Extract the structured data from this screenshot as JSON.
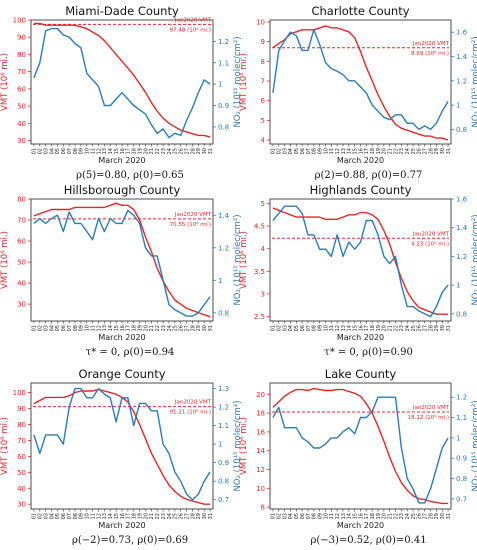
{
  "figure": {
    "x_axis_label": "March 2020",
    "y_left_label": "VMT (10⁶ mi.)",
    "y_right_label": "NO₂ (10¹⁵ molec/cm²)",
    "jan_label": "Jan2020 VMT"
  },
  "colors": {
    "vmt": "#e0282a",
    "no2": "#2c7bb6"
  },
  "chart_data": [
    {
      "type": "line",
      "title": "Miami-Dade County",
      "caption": "ρ(5)=0.80,  ρ(0)=0.65",
      "x": [
        "01",
        "02",
        "03",
        "04",
        "05",
        "06",
        "07",
        "08",
        "09",
        "10",
        "11",
        "12",
        "13",
        "14",
        "15",
        "16",
        "17",
        "18",
        "19",
        "20",
        "21",
        "22",
        "23",
        "24",
        "25",
        "26",
        "27",
        "28",
        "29",
        "30",
        "31"
      ],
      "series": [
        {
          "axis": "left",
          "values": [
            98,
            98,
            97,
            97,
            97,
            97,
            97,
            97,
            96,
            95,
            93,
            91,
            88,
            84,
            80,
            76,
            72,
            68,
            63,
            58,
            52,
            47,
            43,
            40,
            38,
            36,
            35,
            34,
            33,
            33,
            32
          ]
        },
        {
          "axis": "right",
          "values": [
            1.03,
            1.1,
            1.25,
            1.26,
            1.26,
            1.23,
            1.22,
            1.19,
            1.17,
            1.05,
            1.02,
            0.99,
            0.9,
            0.9,
            0.93,
            0.96,
            0.93,
            0.9,
            0.88,
            0.86,
            0.81,
            0.77,
            0.79,
            0.75,
            0.77,
            0.76,
            0.83,
            0.89,
            0.96,
            1.02,
            1.0
          ]
        }
      ],
      "jan_vmt": "97.48",
      "jan_line": 97.48,
      "ylim_left": [
        28,
        100
      ],
      "yticks_left": [
        30,
        40,
        50,
        60,
        70,
        80,
        90,
        100
      ],
      "ylim_right": [
        0.72,
        1.3
      ],
      "yticks_right": [
        0.8,
        0.9,
        1.0,
        1.1,
        1.2
      ]
    },
    {
      "type": "line",
      "title": "Charlotte County",
      "caption": "ρ(2)=0.88,  ρ(0)=0.77",
      "x": [
        "01",
        "02",
        "03",
        "04",
        "05",
        "06",
        "07",
        "08",
        "09",
        "10",
        "11",
        "12",
        "13",
        "14",
        "15",
        "16",
        "17",
        "18",
        "19",
        "20",
        "21",
        "22",
        "23",
        "24",
        "25",
        "26",
        "27",
        "28",
        "29",
        "30",
        "31"
      ],
      "series": [
        {
          "axis": "left",
          "values": [
            8.7,
            8.9,
            9.1,
            9.4,
            9.5,
            9.6,
            9.6,
            9.6,
            9.7,
            9.8,
            9.7,
            9.7,
            9.6,
            9.5,
            9.2,
            8.5,
            7.7,
            7.0,
            6.3,
            5.7,
            5.2,
            4.8,
            4.6,
            4.5,
            4.4,
            4.3,
            4.2,
            4.2,
            4.1,
            4.1,
            4.0
          ]
        },
        {
          "axis": "right",
          "values": [
            1.1,
            1.45,
            1.53,
            1.6,
            1.57,
            1.45,
            1.45,
            1.62,
            1.5,
            1.35,
            1.3,
            1.28,
            1.25,
            1.2,
            1.2,
            1.15,
            1.1,
            1.0,
            0.95,
            0.9,
            0.88,
            0.92,
            0.92,
            0.85,
            0.85,
            0.8,
            0.83,
            0.8,
            0.85,
            0.95,
            1.03
          ]
        }
      ],
      "jan_vmt": "8.69",
      "jan_line": 8.69,
      "ylim_left": [
        3.8,
        10.1
      ],
      "yticks_left": [
        4,
        5,
        6,
        7,
        8,
        9,
        10
      ],
      "ylim_right": [
        0.68,
        1.7
      ],
      "yticks_right": [
        0.8,
        1.0,
        1.2,
        1.4,
        1.6
      ]
    },
    {
      "type": "line",
      "title": "Hillsborough County",
      "caption": "τ* = 0, ρ(0)=0.94",
      "x": [
        "01",
        "02",
        "03",
        "04",
        "05",
        "06",
        "07",
        "08",
        "09",
        "10",
        "11",
        "12",
        "13",
        "14",
        "15",
        "16",
        "17",
        "18",
        "19",
        "20",
        "21",
        "22",
        "23",
        "24",
        "25",
        "26",
        "27",
        "28",
        "29",
        "30",
        "31"
      ],
      "series": [
        {
          "axis": "left",
          "values": [
            72,
            73,
            74,
            75,
            75,
            75,
            75,
            76,
            76,
            76,
            76,
            76,
            76,
            77,
            78,
            77,
            77,
            75,
            70,
            62,
            55,
            47,
            41,
            36,
            32,
            30,
            28,
            27,
            26,
            25,
            24
          ]
        },
        {
          "axis": "right",
          "values": [
            1.35,
            1.38,
            1.35,
            1.38,
            1.4,
            1.3,
            1.42,
            1.35,
            1.35,
            1.3,
            1.25,
            1.38,
            1.3,
            1.38,
            1.35,
            1.35,
            1.43,
            1.4,
            1.35,
            1.2,
            1.15,
            1.15,
            1.0,
            0.85,
            0.82,
            0.8,
            0.78,
            0.78,
            0.8,
            0.85,
            0.9
          ]
        }
      ],
      "jan_vmt": "70.55",
      "jan_line": 70.55,
      "ylim_left": [
        22,
        80
      ],
      "yticks_left": [
        30,
        40,
        50,
        60,
        70,
        80
      ],
      "ylim_right": [
        0.75,
        1.5
      ],
      "yticks_right": [
        0.8,
        1.0,
        1.2,
        1.4
      ]
    },
    {
      "type": "line",
      "title": "Highlands County",
      "caption": "τ* = 0, ρ(0)=0.90",
      "x": [
        "01",
        "02",
        "03",
        "04",
        "05",
        "06",
        "07",
        "08",
        "09",
        "10",
        "11",
        "12",
        "13",
        "14",
        "15",
        "16",
        "17",
        "18",
        "19",
        "20",
        "21",
        "22",
        "23",
        "24",
        "25",
        "26",
        "27",
        "28",
        "29",
        "30",
        "31"
      ],
      "series": [
        {
          "axis": "left",
          "values": [
            4.9,
            4.85,
            4.8,
            4.75,
            4.7,
            4.7,
            4.7,
            4.7,
            4.7,
            4.65,
            4.65,
            4.65,
            4.7,
            4.75,
            4.75,
            4.8,
            4.8,
            4.75,
            4.65,
            4.4,
            4.1,
            3.7,
            3.35,
            3.05,
            2.85,
            2.7,
            2.65,
            2.6,
            2.55,
            2.55,
            2.55
          ]
        },
        {
          "axis": "right",
          "values": [
            1.45,
            1.5,
            1.55,
            1.55,
            1.55,
            1.5,
            1.35,
            1.35,
            1.25,
            1.25,
            1.2,
            1.35,
            1.2,
            1.3,
            1.25,
            1.3,
            1.45,
            1.45,
            1.35,
            1.2,
            1.15,
            1.2,
            1.0,
            0.85,
            0.85,
            0.82,
            0.8,
            0.78,
            0.85,
            0.95,
            1.0
          ]
        }
      ],
      "jan_vmt": "4.23",
      "jan_line": 4.23,
      "ylim_left": [
        2.4,
        5.1
      ],
      "yticks_left": [
        2.5,
        3.0,
        3.5,
        4.0,
        4.5,
        5.0
      ],
      "ylim_right": [
        0.75,
        1.6
      ],
      "yticks_right": [
        0.8,
        1.0,
        1.2,
        1.4,
        1.6
      ]
    },
    {
      "type": "line",
      "title": "Orange County",
      "caption": "ρ(−2)=0.73,  ρ(0)=0.69",
      "x": [
        "01",
        "02",
        "03",
        "04",
        "05",
        "06",
        "07",
        "08",
        "09",
        "10",
        "11",
        "12",
        "13",
        "14",
        "15",
        "16",
        "17",
        "18",
        "19",
        "20",
        "21",
        "22",
        "23",
        "24",
        "25",
        "26",
        "27",
        "28",
        "29",
        "30",
        "31"
      ],
      "series": [
        {
          "axis": "left",
          "values": [
            93,
            95,
            97,
            97,
            97,
            97,
            98,
            100,
            101,
            101,
            101,
            102,
            101,
            100,
            99,
            97,
            94,
            88,
            80,
            71,
            62,
            55,
            48,
            42,
            38,
            35,
            33,
            32,
            31,
            30,
            30
          ]
        },
        {
          "axis": "right",
          "values": [
            1.05,
            0.95,
            1.05,
            1.05,
            1.05,
            1.0,
            1.2,
            1.3,
            1.3,
            1.25,
            1.25,
            1.3,
            1.27,
            1.25,
            1.12,
            1.25,
            1.25,
            1.1,
            1.22,
            1.22,
            1.18,
            1.18,
            1.0,
            0.95,
            0.85,
            0.8,
            0.73,
            0.7,
            0.73,
            0.8,
            0.85
          ]
        }
      ],
      "jan_vmt": "91.21",
      "jan_line": 91.21,
      "ylim_left": [
        27,
        106
      ],
      "yticks_left": [
        30,
        40,
        50,
        60,
        70,
        80,
        90,
        100
      ],
      "ylim_right": [
        0.65,
        1.33
      ],
      "yticks_right": [
        0.7,
        0.8,
        0.9,
        1.0,
        1.1,
        1.2,
        1.3
      ]
    },
    {
      "type": "line",
      "title": "Lake County",
      "caption": "ρ(−3)=0.52,  ρ(0)=0.41",
      "x": [
        "01",
        "02",
        "03",
        "04",
        "05",
        "06",
        "07",
        "08",
        "09",
        "10",
        "11",
        "12",
        "13",
        "14",
        "15",
        "16",
        "17",
        "18",
        "19",
        "20",
        "21",
        "22",
        "23",
        "24",
        "25",
        "26",
        "27",
        "28",
        "29",
        "30",
        "31"
      ],
      "series": [
        {
          "axis": "left",
          "values": [
            18.6,
            19.2,
            19.8,
            20.2,
            20.5,
            20.5,
            20.4,
            20.6,
            20.5,
            20.4,
            20.4,
            20.5,
            20.5,
            20.3,
            20.1,
            19.8,
            19.0,
            18.0,
            16.6,
            15.0,
            13.3,
            11.8,
            10.6,
            9.8,
            9.2,
            8.9,
            8.8,
            8.6,
            8.5,
            8.4,
            8.4
          ]
        },
        {
          "axis": "right",
          "values": [
            1.1,
            1.15,
            1.05,
            1.05,
            1.05,
            1.0,
            0.98,
            0.95,
            0.95,
            0.97,
            1.0,
            1.0,
            1.03,
            1.05,
            1.02,
            1.1,
            1.1,
            1.13,
            1.2,
            1.2,
            1.2,
            1.2,
            0.95,
            0.8,
            0.75,
            0.68,
            0.68,
            0.75,
            0.85,
            0.95,
            1.0
          ]
        }
      ],
      "jan_vmt": "18.12",
      "jan_line": 18.12,
      "ylim_left": [
        7.8,
        21.2
      ],
      "yticks_left": [
        8,
        10,
        12,
        14,
        16,
        18,
        20
      ],
      "ylim_right": [
        0.65,
        1.27
      ],
      "yticks_right": [
        0.7,
        0.8,
        0.9,
        1.0,
        1.1,
        1.2
      ]
    }
  ]
}
